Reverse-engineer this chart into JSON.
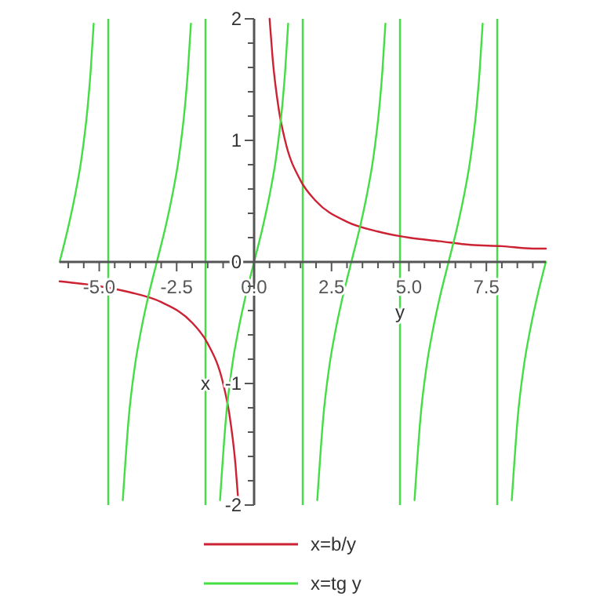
{
  "chart_data": {
    "type": "line",
    "xlabel": "y",
    "ylabel": "x",
    "xlim": [
      -6.28,
      9.42
    ],
    "ylim": [
      -2,
      2
    ],
    "xticks": [
      {
        "value": -6,
        "label": null
      },
      {
        "value": -5.5,
        "label": null
      },
      {
        "value": -5,
        "label": "-5.0"
      },
      {
        "value": -4.5,
        "label": null
      },
      {
        "value": -4,
        "label": null
      },
      {
        "value": -3.5,
        "label": null
      },
      {
        "value": -3,
        "label": null
      },
      {
        "value": -2.5,
        "label": "-2.5"
      },
      {
        "value": -2,
        "label": null
      },
      {
        "value": -1.5,
        "label": null
      },
      {
        "value": -1,
        "label": null
      },
      {
        "value": -0.5,
        "label": null
      },
      {
        "value": 0,
        "label": "0.0"
      },
      {
        "value": 0.5,
        "label": null
      },
      {
        "value": 1,
        "label": null
      },
      {
        "value": 1.5,
        "label": null
      },
      {
        "value": 2,
        "label": null
      },
      {
        "value": 2.5,
        "label": "2.5"
      },
      {
        "value": 3,
        "label": null
      },
      {
        "value": 3.5,
        "label": null
      },
      {
        "value": 4,
        "label": null
      },
      {
        "value": 4.5,
        "label": null
      },
      {
        "value": 5,
        "label": "5.0"
      },
      {
        "value": 5.5,
        "label": null
      },
      {
        "value": 6,
        "label": null
      },
      {
        "value": 6.5,
        "label": null
      },
      {
        "value": 7,
        "label": null
      },
      {
        "value": 7.5,
        "label": "7.5"
      },
      {
        "value": 8,
        "label": null
      },
      {
        "value": 8.5,
        "label": null
      },
      {
        "value": 9,
        "label": null
      }
    ],
    "yticks": [
      -2,
      {
        "value": -1.8,
        "label": null
      },
      {
        "value": -1.6,
        "label": null
      },
      {
        "value": -1.4,
        "label": null
      },
      {
        "value": -1.2,
        "label": null
      },
      -1,
      {
        "value": -0.8,
        "label": null
      },
      {
        "value": -0.6,
        "label": null
      },
      {
        "value": -0.4,
        "label": null
      },
      {
        "value": -0.2,
        "label": null
      },
      0,
      {
        "value": 0.2,
        "label": null
      },
      {
        "value": 0.4,
        "label": null
      },
      {
        "value": 0.6,
        "label": null
      },
      {
        "value": 0.8,
        "label": null
      },
      1,
      {
        "value": 1.2,
        "label": null
      },
      {
        "value": 1.4,
        "label": null
      },
      {
        "value": 1.6,
        "label": null
      },
      {
        "value": 1.8,
        "label": null
      },
      2
    ],
    "grid": false,
    "legend": "bottom",
    "marker": "none",
    "line_style": "solid",
    "series": [
      {
        "name": "x=b/y",
        "color": "#cc2233",
        "x": [
          -6.28,
          -5,
          -4,
          -3,
          -2,
          -1.5,
          -1,
          -0.8,
          -0.6,
          -0.5,
          0,
          0.5,
          0.6,
          0.8,
          1,
          1.5,
          2,
          3,
          4,
          5,
          6,
          7,
          8,
          9,
          9.42
        ],
        "values": [
          -0.16,
          -0.2,
          -0.25,
          -0.33,
          -0.5,
          -0.67,
          -1,
          -1.25,
          -1.67,
          -2,
          null,
          2,
          1.67,
          1.25,
          1,
          0.67,
          0.5,
          0.33,
          0.25,
          0.2,
          0.17,
          0.14,
          0.13,
          0.11,
          0.11
        ]
      },
      {
        "name": "x=tg y",
        "color": "#44dd44",
        "x": [
          -6.28,
          -5.98,
          -5.78,
          -5.58,
          -5.38,
          -5.28,
          -5.18,
          -4.71,
          -4.24,
          -4.04,
          -3.84,
          -3.64,
          -3.44,
          -3.14,
          -2.84,
          -2.64,
          -2.44,
          -2.24,
          -2.14,
          -2.04,
          -1.57,
          -1.1,
          -0.9,
          -0.7,
          -0.5,
          -0.3,
          0,
          0.3,
          0.5,
          0.7,
          0.9,
          1,
          1.1,
          1.57,
          2.04,
          2.24,
          2.44,
          2.64,
          2.84,
          3.14,
          3.44,
          3.64,
          3.84,
          4.04,
          4.14,
          4.24,
          4.71,
          5.18,
          5.38,
          5.58,
          5.78,
          5.98,
          6.28,
          6.58,
          6.78,
          6.98,
          7.18,
          7.28,
          7.38,
          7.85,
          8.32,
          8.52,
          8.72,
          8.92,
          9.12,
          9.42
        ],
        "values": [
          0,
          0.31,
          0.55,
          0.84,
          1.26,
          1.56,
          1.96,
          null,
          -1.96,
          -1.26,
          -0.84,
          -0.55,
          -0.31,
          0,
          0.31,
          0.55,
          0.84,
          1.26,
          1.56,
          1.96,
          null,
          -1.96,
          -1.26,
          -0.84,
          -0.55,
          -0.31,
          0,
          0.31,
          0.55,
          0.84,
          1.26,
          1.56,
          1.96,
          null,
          -1.96,
          -1.26,
          -0.84,
          -0.55,
          -0.31,
          0,
          0.31,
          0.55,
          0.84,
          1.26,
          1.56,
          1.96,
          null,
          -1.96,
          -1.26,
          -0.84,
          -0.55,
          -0.31,
          0,
          0.31,
          0.55,
          0.84,
          1.26,
          1.56,
          1.96,
          null,
          -1.96,
          -1.26,
          -0.84,
          -0.55,
          -0.31,
          0
        ]
      }
    ],
    "ref_lines": [
      {
        "axis": "x",
        "value": -4.71,
        "color": "#44dd44"
      },
      {
        "axis": "x",
        "value": -1.57,
        "color": "#44dd44"
      },
      {
        "axis": "x",
        "value": 1.57,
        "color": "#44dd44"
      },
      {
        "axis": "x",
        "value": 4.71,
        "color": "#44dd44"
      },
      {
        "axis": "x",
        "value": 7.85,
        "color": "#44dd44"
      }
    ]
  }
}
